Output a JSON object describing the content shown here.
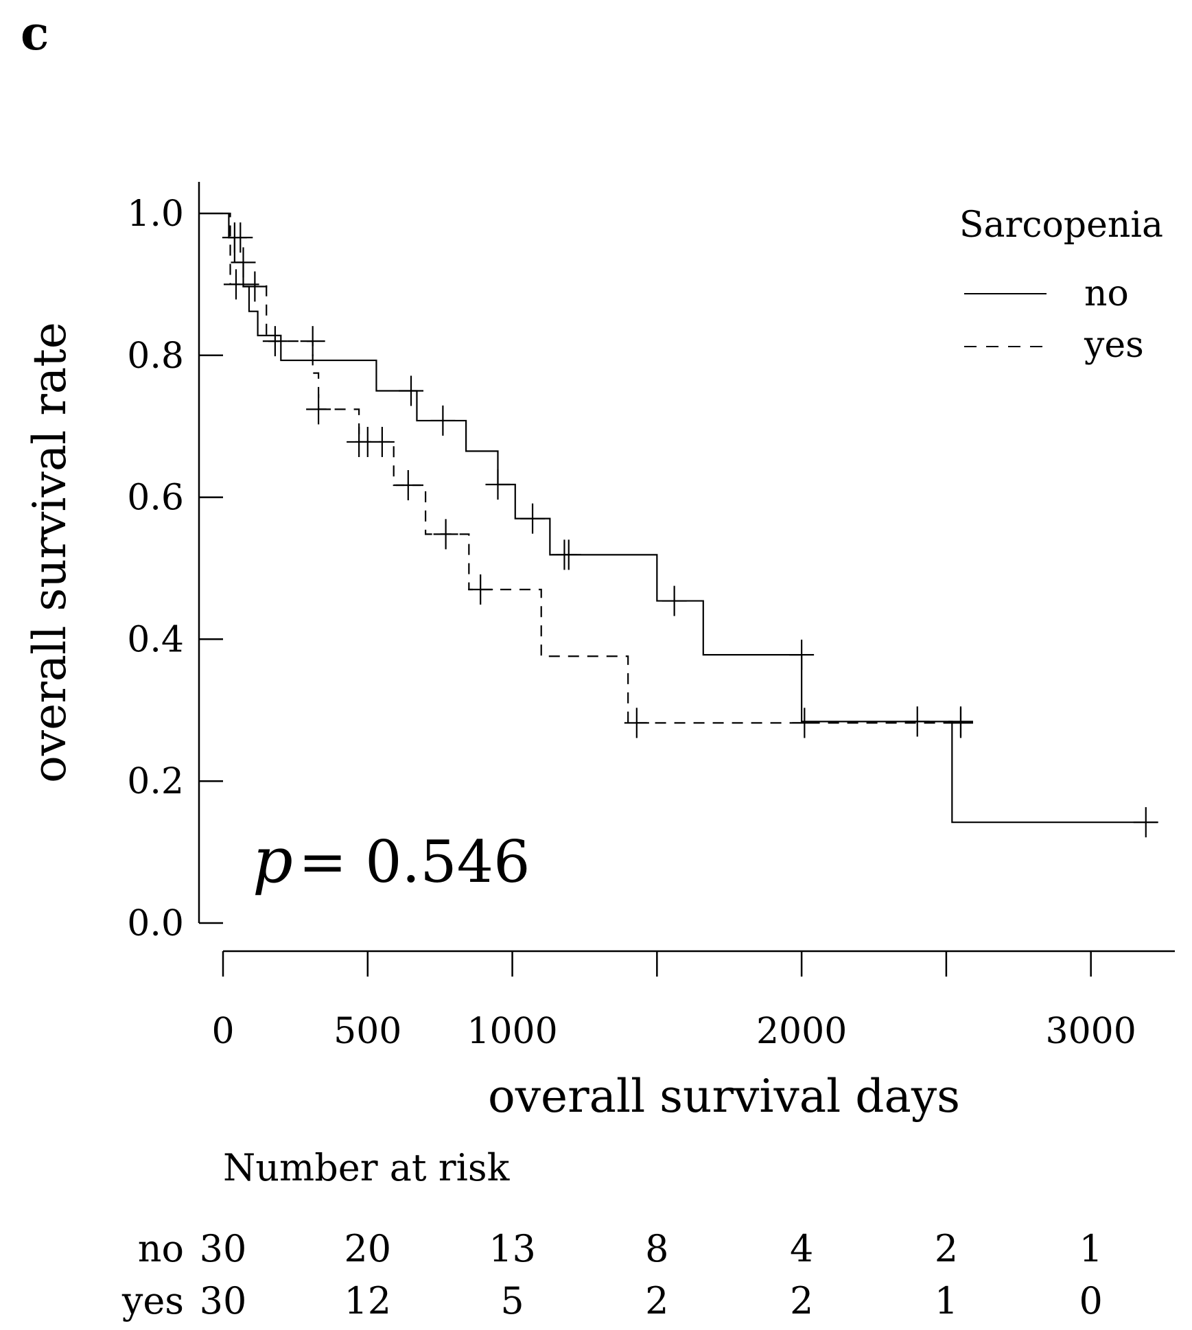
{
  "panel_label": "c",
  "chart_data": {
    "type": "line",
    "subtype": "kaplan-meier",
    "title": "",
    "xlabel": "overall survival days",
    "ylabel": "overall survival rate",
    "xlim": [
      0,
      3300
    ],
    "ylim": [
      0,
      1.0
    ],
    "x_ticks": [
      0,
      500,
      1000,
      2000,
      3000
    ],
    "y_ticks": [
      0.0,
      0.2,
      0.4,
      0.6,
      0.8,
      1.0
    ],
    "x_tick_labels": [
      "0",
      "500",
      "1000",
      "2000",
      "3000"
    ],
    "y_tick_labels": [
      "0.0",
      "0.2",
      "0.4",
      "0.6",
      "0.8",
      "1.0"
    ],
    "legend": {
      "title": "Sarcopenia",
      "position": "top-right",
      "entries": [
        {
          "label": "no",
          "style": "solid"
        },
        {
          "label": "yes",
          "style": "dashed"
        }
      ]
    },
    "annotation": {
      "p_symbol": "p",
      "p_text": "= 0.546"
    },
    "series": [
      {
        "name": "no",
        "style": "solid",
        "steps": [
          [
            0,
            1.0
          ],
          [
            20,
            0.966
          ],
          [
            40,
            0.931
          ],
          [
            70,
            0.897
          ],
          [
            90,
            0.862
          ],
          [
            120,
            0.828
          ],
          [
            200,
            0.793
          ],
          [
            530,
            0.75
          ],
          [
            670,
            0.708
          ],
          [
            840,
            0.665
          ],
          [
            950,
            0.618
          ],
          [
            1010,
            0.57
          ],
          [
            1130,
            0.519
          ],
          [
            1500,
            0.454
          ],
          [
            1660,
            0.378
          ],
          [
            2000,
            0.284
          ],
          [
            2520,
            0.142
          ]
        ],
        "end_x": 3230,
        "censored": [
          [
            40,
            0.966
          ],
          [
            60,
            0.966
          ],
          [
            70,
            0.931
          ],
          [
            110,
            0.897
          ],
          [
            650,
            0.75
          ],
          [
            760,
            0.708
          ],
          [
            950,
            0.618
          ],
          [
            1070,
            0.57
          ],
          [
            1180,
            0.519
          ],
          [
            1195,
            0.519
          ],
          [
            1560,
            0.454
          ],
          [
            2000,
            0.378
          ],
          [
            2400,
            0.284
          ],
          [
            2550,
            0.284
          ],
          [
            3190,
            0.142
          ]
        ]
      },
      {
        "name": "yes",
        "style": "dashed",
        "steps": [
          [
            0,
            1.0
          ],
          [
            25,
            0.9
          ],
          [
            150,
            0.82
          ],
          [
            310,
            0.775
          ],
          [
            330,
            0.724
          ],
          [
            470,
            0.678
          ],
          [
            590,
            0.617
          ],
          [
            700,
            0.548
          ],
          [
            850,
            0.47
          ],
          [
            1100,
            0.376
          ],
          [
            1400,
            0.282
          ]
        ],
        "end_x": 2590,
        "censored": [
          [
            45,
            0.9
          ],
          [
            180,
            0.82
          ],
          [
            310,
            0.82
          ],
          [
            330,
            0.724
          ],
          [
            470,
            0.678
          ],
          [
            500,
            0.678
          ],
          [
            550,
            0.678
          ],
          [
            640,
            0.617
          ],
          [
            770,
            0.548
          ],
          [
            890,
            0.47
          ],
          [
            1430,
            0.282
          ],
          [
            2010,
            0.282
          ],
          [
            2550,
            0.282
          ]
        ]
      }
    ],
    "risk_table": {
      "title": "Number at risk",
      "times": [
        0,
        500,
        1000,
        1500,
        2000,
        2500,
        3000
      ],
      "rows": [
        {
          "label": "no",
          "values": [
            "30",
            "20",
            "13",
            "8",
            "4",
            "2",
            "1"
          ]
        },
        {
          "label": "yes",
          "values": [
            "30",
            "12",
            "5",
            "2",
            "2",
            "1",
            "0"
          ]
        }
      ]
    }
  }
}
